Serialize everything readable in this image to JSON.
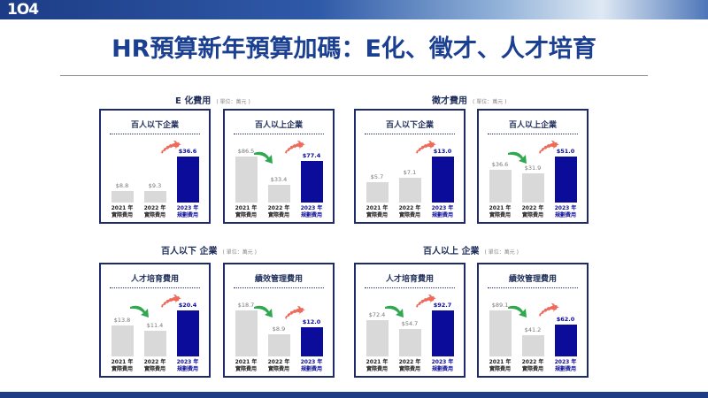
{
  "slide": {
    "logo": "1O4",
    "title": "HR預算新年預算加碼：E化、徵才、人才培育"
  },
  "groups": [
    {
      "title": "E 化費用",
      "unit": "( 單位：萬元 )"
    },
    {
      "title": "徵才費用",
      "unit": "( 單位：萬元 )"
    },
    {
      "title": "百人以下  企業",
      "unit": "( 單位：萬元 )"
    },
    {
      "title": "百人以上  企業",
      "unit": "( 單位：萬元 )"
    }
  ],
  "chart_data": [
    {
      "type": "bar",
      "title": "百人以下企業",
      "categories": [
        "2021 年\n實際費用",
        "2022 年\n實際費用",
        "2023 年\n規劃費用"
      ],
      "values": [
        8.8,
        9.3,
        36.6
      ],
      "value_labels": [
        "$8.8",
        "$9.3",
        "$36.6"
      ],
      "colors": [
        "#d9d9d9",
        "#d9d9d9",
        "#0c0c9a"
      ]
    },
    {
      "type": "bar",
      "title": "百人以上企業",
      "categories": [
        "2021 年\n實際費用",
        "2022 年\n實際費用",
        "2023 年\n規劃費用"
      ],
      "values": [
        86.5,
        33.4,
        77.4
      ],
      "value_labels": [
        "$86.5",
        "$33.4",
        "$77.4"
      ],
      "colors": [
        "#d9d9d9",
        "#d9d9d9",
        "#0c0c9a"
      ]
    },
    {
      "type": "bar",
      "title": "百人以下企業",
      "categories": [
        "2021 年\n實際費用",
        "2022 年\n實際費用",
        "2023 年\n規劃費用"
      ],
      "values": [
        5.7,
        7.1,
        13.0
      ],
      "value_labels": [
        "$5.7",
        "$7.1",
        "$13.0"
      ],
      "colors": [
        "#d9d9d9",
        "#d9d9d9",
        "#0c0c9a"
      ]
    },
    {
      "type": "bar",
      "title": "百人以上企業",
      "categories": [
        "2021 年\n實際費用",
        "2022 年\n實際費用",
        "2023 年\n規劃費用"
      ],
      "values": [
        36.6,
        31.9,
        51.0
      ],
      "value_labels": [
        "$36.6",
        "$31.9",
        "$51.0"
      ],
      "colors": [
        "#d9d9d9",
        "#d9d9d9",
        "#0c0c9a"
      ]
    },
    {
      "type": "bar",
      "title": "人才培育費用",
      "categories": [
        "2021 年\n實際費用",
        "2022 年\n實際費用",
        "2023 年\n規劃費用"
      ],
      "values": [
        13.8,
        11.4,
        20.4
      ],
      "value_labels": [
        "$13.8",
        "$11.4",
        "$20.4"
      ],
      "colors": [
        "#d9d9d9",
        "#d9d9d9",
        "#0c0c9a"
      ]
    },
    {
      "type": "bar",
      "title": "績效管理費用",
      "categories": [
        "2021 年\n實際費用",
        "2022 年\n實際費用",
        "2023 年\n規劃費用"
      ],
      "values": [
        18.7,
        8.9,
        12.0
      ],
      "value_labels": [
        "$18.7",
        "$8.9",
        "$12.0"
      ],
      "colors": [
        "#d9d9d9",
        "#d9d9d9",
        "#0c0c9a"
      ]
    },
    {
      "type": "bar",
      "title": "人才培育費用",
      "categories": [
        "2021 年\n實際費用",
        "2022 年\n實際費用",
        "2023 年\n規劃費用"
      ],
      "values": [
        72.4,
        54.7,
        92.7
      ],
      "value_labels": [
        "$72.4",
        "$54.7",
        "$92.7"
      ],
      "colors": [
        "#d9d9d9",
        "#d9d9d9",
        "#0c0c9a"
      ]
    },
    {
      "type": "bar",
      "title": "績效管理費用",
      "categories": [
        "2021 年\n實際費用",
        "2022 年\n實際費用",
        "2023 年\n規劃費用"
      ],
      "values": [
        89.1,
        41.2,
        62.0
      ],
      "value_labels": [
        "$89.1",
        "$41.2",
        "$62.0"
      ],
      "colors": [
        "#d9d9d9",
        "#d9d9d9",
        "#0c0c9a"
      ]
    }
  ]
}
